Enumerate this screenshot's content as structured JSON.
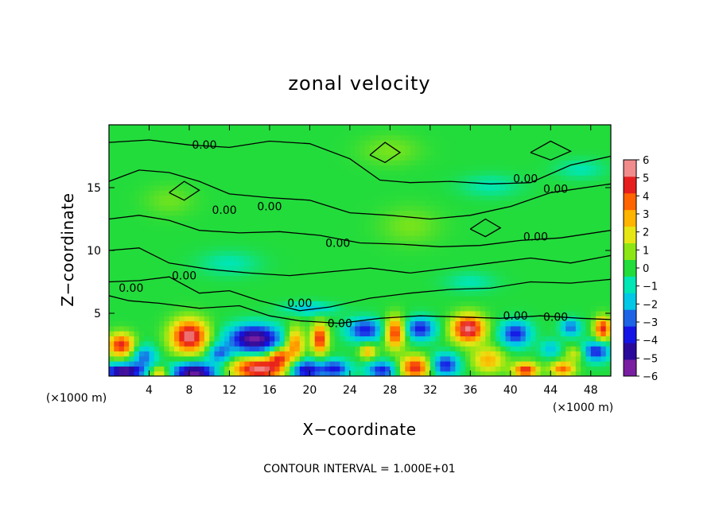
{
  "chart_data": {
    "type": "heatmap",
    "title": "zonal velocity",
    "xlabel": "X−coordinate",
    "ylabel": "Z−coordinate",
    "x_unit": "(×1000 m)",
    "y_unit": "(×1000 m)",
    "xlim": [
      0,
      50
    ],
    "ylim": [
      0,
      20
    ],
    "x_ticks": [
      4,
      8,
      12,
      16,
      20,
      24,
      28,
      32,
      36,
      40,
      44,
      48
    ],
    "x_tick_labels": [
      "4",
      "8",
      "12",
      "16",
      "20",
      "24",
      "28",
      "32",
      "36",
      "40",
      "44",
      "48"
    ],
    "y_ticks": [
      5,
      10,
      15
    ],
    "y_tick_labels": [
      "5",
      "10",
      "15"
    ],
    "colorbar": {
      "min": -6,
      "max": 6,
      "ticks": [
        6,
        5,
        4,
        3,
        2,
        1,
        0,
        -1,
        -2,
        -3,
        -4,
        -5,
        -6
      ],
      "tick_labels": [
        "6",
        "5",
        "4",
        "3",
        "2",
        "1",
        "0",
        "−1",
        "−2",
        "−3",
        "−4",
        "−5",
        "−6"
      ],
      "colors": [
        "#7a1fa2",
        "#2a0a9a",
        "#1414e6",
        "#1e64e6",
        "#00c8e6",
        "#00e6b4",
        "#22dc3c",
        "#8ce614",
        "#e6e614",
        "#ffb400",
        "#ff6400",
        "#e61e1e",
        "#f08c8c"
      ]
    },
    "contour_label": "0.00",
    "contour_interval_text": "CONTOUR INTERVAL = 1.000E+01",
    "contour_label_positions": [
      [
        9.5,
        18.1
      ],
      [
        11.5,
        12.9
      ],
      [
        16.0,
        13.2
      ],
      [
        2.2,
        6.7
      ],
      [
        7.5,
        7.7
      ],
      [
        19.0,
        5.5
      ],
      [
        23.0,
        3.9
      ],
      [
        22.8,
        10.3
      ],
      [
        41.5,
        15.4
      ],
      [
        44.5,
        14.6
      ],
      [
        42.5,
        10.8
      ],
      [
        40.5,
        4.5
      ],
      [
        44.5,
        4.4
      ]
    ],
    "features": [
      {
        "x": 1.2,
        "z": 2.5,
        "v": 5,
        "rx": 1.3,
        "rz": 0.9
      },
      {
        "x": 8.0,
        "z": 3.2,
        "v": 6,
        "rx": 1.8,
        "rz": 1.3
      },
      {
        "x": 14.5,
        "z": 3.0,
        "v": -6,
        "rx": 2.6,
        "rz": 1.1
      },
      {
        "x": 18.5,
        "z": 2.6,
        "v": 4,
        "rx": 0.9,
        "rz": 1.3
      },
      {
        "x": 21.0,
        "z": 3.0,
        "v": 5,
        "rx": 0.8,
        "rz": 1.2
      },
      {
        "x": 25.5,
        "z": 3.7,
        "v": -4,
        "rx": 1.8,
        "rz": 0.9
      },
      {
        "x": 28.5,
        "z": 3.5,
        "v": 5,
        "rx": 1.0,
        "rz": 1.2
      },
      {
        "x": 31.0,
        "z": 3.8,
        "v": -4,
        "rx": 1.5,
        "rz": 0.9
      },
      {
        "x": 35.8,
        "z": 3.8,
        "v": 6,
        "rx": 1.6,
        "rz": 1.1
      },
      {
        "x": 40.5,
        "z": 3.4,
        "v": -4,
        "rx": 1.5,
        "rz": 1.0
      },
      {
        "x": 46.0,
        "z": 3.9,
        "v": -3,
        "rx": 1.0,
        "rz": 0.7
      },
      {
        "x": 49.2,
        "z": 3.8,
        "v": 5,
        "rx": 0.8,
        "rz": 0.9
      },
      {
        "x": 48.5,
        "z": 2.0,
        "v": -4,
        "rx": 1.4,
        "rz": 0.8
      },
      {
        "x": 3.5,
        "z": 1.6,
        "v": -3,
        "rx": 1.2,
        "rz": 0.9
      },
      {
        "x": 1.5,
        "z": 0.4,
        "v": -6,
        "rx": 2.0,
        "rz": 0.6
      },
      {
        "x": 5.0,
        "z": 0.3,
        "v": 3,
        "rx": 1.0,
        "rz": 0.5
      },
      {
        "x": 8.5,
        "z": 0.3,
        "v": -6,
        "rx": 2.2,
        "rz": 0.8
      },
      {
        "x": 11.0,
        "z": 1.8,
        "v": -3,
        "rx": 1.2,
        "rz": 0.8
      },
      {
        "x": 15.0,
        "z": 0.6,
        "v": 6,
        "rx": 2.8,
        "rz": 0.9
      },
      {
        "x": 17.0,
        "z": 1.6,
        "v": 4,
        "rx": 1.0,
        "rz": 0.7
      },
      {
        "x": 19.5,
        "z": 0.5,
        "v": -5,
        "rx": 1.6,
        "rz": 0.8
      },
      {
        "x": 22.5,
        "z": 0.6,
        "v": -4,
        "rx": 1.5,
        "rz": 0.7
      },
      {
        "x": 25.8,
        "z": 2.0,
        "v": 3,
        "rx": 0.8,
        "rz": 0.6
      },
      {
        "x": 27.2,
        "z": 0.5,
        "v": -4,
        "rx": 1.5,
        "rz": 0.7
      },
      {
        "x": 30.5,
        "z": 0.7,
        "v": 5,
        "rx": 1.5,
        "rz": 0.9
      },
      {
        "x": 33.5,
        "z": 0.9,
        "v": -4,
        "rx": 1.4,
        "rz": 0.9
      },
      {
        "x": 37.8,
        "z": 1.3,
        "v": 3,
        "rx": 1.6,
        "rz": 1.0
      },
      {
        "x": 41.5,
        "z": 0.5,
        "v": 5,
        "rx": 1.2,
        "rz": 0.6
      },
      {
        "x": 45.2,
        "z": 0.6,
        "v": 4,
        "rx": 1.2,
        "rz": 0.6
      },
      {
        "x": 46.5,
        "z": 1.8,
        "v": 2,
        "rx": 1.0,
        "rz": 0.6
      },
      {
        "x": 44.0,
        "z": 2.2,
        "v": -2,
        "rx": 1.0,
        "rz": 0.7
      },
      {
        "x": 20.0,
        "z": 5.4,
        "v": -2,
        "rx": 2.5,
        "rz": 0.5
      },
      {
        "x": 38.0,
        "z": 15.2,
        "v": -1,
        "rx": 3.0,
        "rz": 0.9
      },
      {
        "x": 47.0,
        "z": 16.5,
        "v": -1,
        "rx": 2.5,
        "rz": 0.8
      },
      {
        "x": 30.0,
        "z": 12.0,
        "v": 0.8,
        "rx": 3.0,
        "rz": 1.5
      },
      {
        "x": 12.0,
        "z": 9.0,
        "v": -1,
        "rx": 3.0,
        "rz": 1.0
      },
      {
        "x": 28.0,
        "z": 18.0,
        "v": 0.8,
        "rx": 3.0,
        "rz": 1.2
      },
      {
        "x": 6.0,
        "z": 14.0,
        "v": 0.7,
        "rx": 2.5,
        "rz": 1.2
      },
      {
        "x": 36.0,
        "z": 7.5,
        "v": -1,
        "rx": 2.5,
        "rz": 0.8
      }
    ],
    "contours": [
      [
        [
          0,
          18.6
        ],
        [
          4,
          18.8
        ],
        [
          8,
          18.4
        ],
        [
          12,
          18.2
        ],
        [
          16,
          18.7
        ],
        [
          20,
          18.5
        ],
        [
          24,
          17.3
        ],
        [
          27,
          15.6
        ],
        [
          30,
          15.4
        ],
        [
          34,
          15.5
        ],
        [
          38,
          15.3
        ],
        [
          42,
          15.4
        ],
        [
          46,
          16.8
        ],
        [
          50,
          17.5
        ]
      ],
      [
        [
          0,
          15.5
        ],
        [
          3,
          16.4
        ],
        [
          6,
          16.2
        ],
        [
          9,
          15.5
        ],
        [
          12,
          14.5
        ],
        [
          16,
          14.2
        ],
        [
          20,
          14.0
        ],
        [
          24,
          13.0
        ],
        [
          28,
          12.8
        ],
        [
          32,
          12.5
        ],
        [
          36,
          12.8
        ],
        [
          40,
          13.5
        ],
        [
          44,
          14.6
        ],
        [
          50,
          15.3
        ]
      ],
      [
        [
          0,
          12.5
        ],
        [
          3,
          12.8
        ],
        [
          6,
          12.4
        ],
        [
          9,
          11.6
        ],
        [
          13,
          11.4
        ],
        [
          17,
          11.5
        ],
        [
          21,
          11.2
        ],
        [
          25,
          10.6
        ],
        [
          29,
          10.5
        ],
        [
          33,
          10.3
        ],
        [
          37,
          10.4
        ],
        [
          41,
          10.8
        ],
        [
          45,
          11.0
        ],
        [
          50,
          11.6
        ]
      ],
      [
        [
          0,
          10.0
        ],
        [
          3,
          10.2
        ],
        [
          6,
          9.0
        ],
        [
          10,
          8.5
        ],
        [
          14,
          8.2
        ],
        [
          18,
          8.0
        ],
        [
          22,
          8.3
        ],
        [
          26,
          8.6
        ],
        [
          30,
          8.2
        ],
        [
          34,
          8.6
        ],
        [
          38,
          9.0
        ],
        [
          42,
          9.4
        ],
        [
          46,
          9.0
        ],
        [
          50,
          9.6
        ]
      ],
      [
        [
          0,
          7.5
        ],
        [
          3,
          7.6
        ],
        [
          6,
          7.9
        ],
        [
          9,
          6.6
        ],
        [
          12,
          6.8
        ],
        [
          15,
          6.0
        ],
        [
          19,
          5.2
        ],
        [
          22,
          5.5
        ],
        [
          26,
          6.2
        ],
        [
          30,
          6.6
        ],
        [
          34,
          6.9
        ],
        [
          38,
          7.0
        ],
        [
          42,
          7.5
        ],
        [
          46,
          7.4
        ],
        [
          50,
          7.7
        ]
      ],
      [
        [
          0,
          6.4
        ],
        [
          2,
          6.0
        ],
        [
          5,
          5.8
        ],
        [
          9,
          5.4
        ],
        [
          13,
          5.6
        ],
        [
          16,
          4.8
        ],
        [
          19,
          4.4
        ],
        [
          23,
          4.2
        ],
        [
          27,
          4.6
        ],
        [
          31,
          4.8
        ],
        [
          35,
          4.7
        ],
        [
          39,
          4.6
        ],
        [
          43,
          4.8
        ],
        [
          47,
          4.6
        ],
        [
          50,
          4.5
        ]
      ],
      [
        [
          6,
          14.6
        ],
        [
          7.5,
          15.5
        ],
        [
          9,
          14.8
        ],
        [
          7.5,
          14.0
        ],
        [
          6,
          14.6
        ]
      ],
      [
        [
          36,
          11.7
        ],
        [
          37.5,
          12.5
        ],
        [
          39,
          11.8
        ],
        [
          37.5,
          11.1
        ],
        [
          36,
          11.7
        ]
      ],
      [
        [
          26,
          17.6
        ],
        [
          27.5,
          18.6
        ],
        [
          29,
          17.8
        ],
        [
          27.5,
          17.0
        ],
        [
          26,
          17.6
        ]
      ],
      [
        [
          42,
          17.8
        ],
        [
          44,
          18.7
        ],
        [
          46,
          17.9
        ],
        [
          44,
          17.2
        ],
        [
          42,
          17.8
        ]
      ]
    ]
  }
}
